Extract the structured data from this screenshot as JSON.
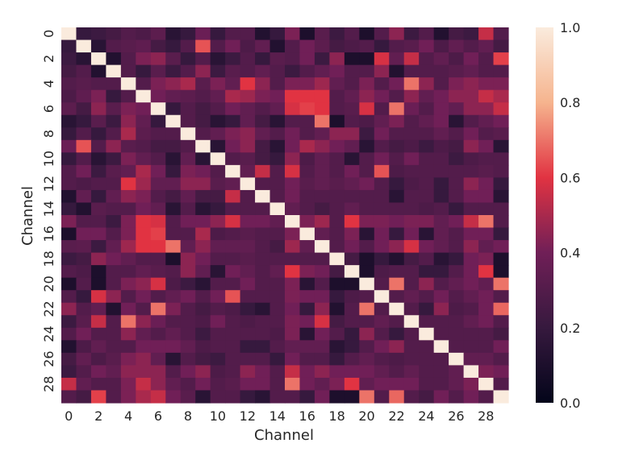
{
  "chart_data": {
    "type": "heatmap",
    "xlabel": "Channel",
    "ylabel": "Channel",
    "size": 30,
    "x_tick_labels": [
      "0",
      "2",
      "4",
      "6",
      "8",
      "10",
      "12",
      "14",
      "16",
      "18",
      "20",
      "22",
      "24",
      "26",
      "28"
    ],
    "y_tick_labels": [
      "0",
      "2",
      "4",
      "6",
      "8",
      "10",
      "12",
      "14",
      "16",
      "18",
      "20",
      "22",
      "24",
      "26",
      "28"
    ],
    "colorbar": {
      "min": 0.0,
      "max": 1.0,
      "tick_labels": [
        "0.0",
        "0.2",
        "0.4",
        "0.6",
        "0.8",
        "1.0"
      ],
      "colormap": "rocket"
    },
    "values": [
      [
        1.0,
        0.2,
        0.22,
        0.25,
        0.3,
        0.28,
        0.33,
        0.15,
        0.2,
        0.38,
        0.2,
        0.3,
        0.3,
        0.12,
        0.2,
        0.42,
        0.1,
        0.32,
        0.22,
        0.3,
        0.1,
        0.3,
        0.45,
        0.22,
        0.3,
        0.12,
        0.25,
        0.22,
        0.55,
        0.3
      ],
      [
        0.2,
        1.0,
        0.15,
        0.3,
        0.32,
        0.34,
        0.25,
        0.2,
        0.3,
        0.65,
        0.3,
        0.4,
        0.28,
        0.35,
        0.12,
        0.3,
        0.4,
        0.33,
        0.25,
        0.28,
        0.3,
        0.2,
        0.3,
        0.32,
        0.4,
        0.28,
        0.35,
        0.3,
        0.35,
        0.25
      ],
      [
        0.22,
        0.15,
        1.0,
        0.12,
        0.3,
        0.42,
        0.45,
        0.32,
        0.2,
        0.3,
        0.15,
        0.22,
        0.3,
        0.2,
        0.32,
        0.3,
        0.4,
        0.22,
        0.45,
        0.1,
        0.1,
        0.58,
        0.35,
        0.55,
        0.3,
        0.35,
        0.28,
        0.4,
        0.3,
        0.62
      ],
      [
        0.25,
        0.3,
        0.12,
        1.0,
        0.3,
        0.2,
        0.32,
        0.22,
        0.3,
        0.45,
        0.22,
        0.32,
        0.3,
        0.35,
        0.3,
        0.22,
        0.3,
        0.35,
        0.4,
        0.3,
        0.3,
        0.45,
        0.12,
        0.3,
        0.3,
        0.3,
        0.32,
        0.35,
        0.3,
        0.3
      ],
      [
        0.3,
        0.32,
        0.3,
        0.3,
        1.0,
        0.3,
        0.42,
        0.45,
        0.5,
        0.32,
        0.42,
        0.35,
        0.6,
        0.45,
        0.3,
        0.42,
        0.42,
        0.48,
        0.35,
        0.3,
        0.42,
        0.3,
        0.4,
        0.7,
        0.45,
        0.3,
        0.42,
        0.45,
        0.42,
        0.42
      ],
      [
        0.28,
        0.34,
        0.42,
        0.2,
        0.3,
        1.0,
        0.4,
        0.35,
        0.33,
        0.3,
        0.35,
        0.5,
        0.48,
        0.42,
        0.4,
        0.6,
        0.6,
        0.6,
        0.3,
        0.35,
        0.45,
        0.4,
        0.3,
        0.45,
        0.35,
        0.4,
        0.45,
        0.45,
        0.55,
        0.5
      ],
      [
        0.33,
        0.25,
        0.45,
        0.32,
        0.42,
        0.4,
        1.0,
        0.2,
        0.3,
        0.25,
        0.3,
        0.4,
        0.35,
        0.3,
        0.35,
        0.58,
        0.62,
        0.6,
        0.3,
        0.32,
        0.58,
        0.3,
        0.7,
        0.38,
        0.3,
        0.4,
        0.35,
        0.45,
        0.45,
        0.55
      ],
      [
        0.15,
        0.2,
        0.32,
        0.22,
        0.45,
        0.35,
        0.2,
        1.0,
        0.3,
        0.25,
        0.15,
        0.2,
        0.35,
        0.25,
        0.15,
        0.3,
        0.3,
        0.7,
        0.1,
        0.3,
        0.28,
        0.35,
        0.42,
        0.3,
        0.35,
        0.4,
        0.15,
        0.3,
        0.35,
        0.4
      ],
      [
        0.2,
        0.3,
        0.2,
        0.3,
        0.5,
        0.33,
        0.3,
        0.3,
        1.0,
        0.3,
        0.35,
        0.42,
        0.45,
        0.35,
        0.3,
        0.4,
        0.3,
        0.35,
        0.45,
        0.45,
        0.22,
        0.4,
        0.3,
        0.3,
        0.3,
        0.35,
        0.3,
        0.4,
        0.3,
        0.32
      ],
      [
        0.38,
        0.65,
        0.3,
        0.45,
        0.32,
        0.3,
        0.25,
        0.25,
        0.3,
        1.0,
        0.15,
        0.4,
        0.45,
        0.25,
        0.15,
        0.4,
        0.5,
        0.45,
        0.4,
        0.35,
        0.15,
        0.3,
        0.25,
        0.28,
        0.22,
        0.28,
        0.25,
        0.45,
        0.4,
        0.15
      ],
      [
        0.2,
        0.3,
        0.15,
        0.22,
        0.42,
        0.35,
        0.3,
        0.15,
        0.35,
        0.15,
        1.0,
        0.3,
        0.32,
        0.25,
        0.2,
        0.45,
        0.28,
        0.35,
        0.3,
        0.15,
        0.3,
        0.4,
        0.3,
        0.4,
        0.3,
        0.3,
        0.22,
        0.28,
        0.3,
        0.3
      ],
      [
        0.3,
        0.4,
        0.22,
        0.32,
        0.35,
        0.5,
        0.4,
        0.2,
        0.42,
        0.4,
        0.3,
        1.0,
        0.35,
        0.55,
        0.3,
        0.58,
        0.3,
        0.35,
        0.3,
        0.4,
        0.3,
        0.65,
        0.28,
        0.3,
        0.3,
        0.3,
        0.3,
        0.3,
        0.32,
        0.3
      ],
      [
        0.3,
        0.28,
        0.3,
        0.3,
        0.6,
        0.48,
        0.35,
        0.35,
        0.45,
        0.45,
        0.32,
        0.35,
        1.0,
        0.3,
        0.3,
        0.4,
        0.32,
        0.35,
        0.32,
        0.35,
        0.4,
        0.3,
        0.2,
        0.28,
        0.3,
        0.2,
        0.3,
        0.45,
        0.4,
        0.2
      ],
      [
        0.12,
        0.35,
        0.2,
        0.35,
        0.45,
        0.42,
        0.3,
        0.25,
        0.35,
        0.25,
        0.25,
        0.55,
        0.3,
        1.0,
        0.3,
        0.4,
        0.3,
        0.3,
        0.3,
        0.3,
        0.3,
        0.3,
        0.15,
        0.3,
        0.3,
        0.2,
        0.3,
        0.4,
        0.4,
        0.15
      ],
      [
        0.2,
        0.12,
        0.32,
        0.3,
        0.3,
        0.4,
        0.35,
        0.15,
        0.3,
        0.15,
        0.2,
        0.3,
        0.3,
        0.3,
        1.0,
        0.35,
        0.3,
        0.25,
        0.3,
        0.35,
        0.3,
        0.3,
        0.3,
        0.3,
        0.28,
        0.3,
        0.2,
        0.3,
        0.3,
        0.3
      ],
      [
        0.42,
        0.3,
        0.3,
        0.22,
        0.42,
        0.6,
        0.58,
        0.3,
        0.4,
        0.4,
        0.45,
        0.58,
        0.4,
        0.4,
        0.35,
        1.0,
        0.42,
        0.48,
        0.3,
        0.6,
        0.42,
        0.42,
        0.4,
        0.42,
        0.42,
        0.35,
        0.4,
        0.55,
        0.7,
        0.3
      ],
      [
        0.1,
        0.4,
        0.4,
        0.3,
        0.42,
        0.6,
        0.62,
        0.3,
        0.3,
        0.5,
        0.28,
        0.3,
        0.32,
        0.3,
        0.3,
        0.42,
        1.0,
        0.35,
        0.3,
        0.42,
        0.15,
        0.4,
        0.2,
        0.4,
        0.15,
        0.35,
        0.3,
        0.4,
        0.4,
        0.2
      ],
      [
        0.32,
        0.33,
        0.22,
        0.35,
        0.48,
        0.6,
        0.6,
        0.7,
        0.35,
        0.45,
        0.35,
        0.35,
        0.35,
        0.3,
        0.25,
        0.48,
        0.35,
        1.0,
        0.3,
        0.4,
        0.3,
        0.4,
        0.45,
        0.58,
        0.4,
        0.35,
        0.3,
        0.45,
        0.35,
        0.4
      ],
      [
        0.22,
        0.25,
        0.45,
        0.4,
        0.35,
        0.3,
        0.3,
        0.1,
        0.45,
        0.4,
        0.3,
        0.3,
        0.32,
        0.3,
        0.3,
        0.3,
        0.3,
        0.3,
        1.0,
        0.25,
        0.1,
        0.2,
        0.12,
        0.25,
        0.3,
        0.15,
        0.2,
        0.4,
        0.42,
        0.1
      ],
      [
        0.3,
        0.28,
        0.1,
        0.3,
        0.3,
        0.35,
        0.32,
        0.3,
        0.45,
        0.35,
        0.15,
        0.4,
        0.35,
        0.3,
        0.35,
        0.6,
        0.42,
        0.4,
        0.25,
        1.0,
        0.1,
        0.28,
        0.3,
        0.3,
        0.2,
        0.2,
        0.3,
        0.4,
        0.6,
        0.1
      ],
      [
        0.1,
        0.3,
        0.1,
        0.3,
        0.42,
        0.45,
        0.58,
        0.28,
        0.22,
        0.15,
        0.3,
        0.3,
        0.4,
        0.3,
        0.3,
        0.42,
        0.15,
        0.3,
        0.1,
        0.1,
        1.0,
        0.3,
        0.7,
        0.3,
        0.45,
        0.3,
        0.35,
        0.4,
        0.35,
        0.7
      ],
      [
        0.3,
        0.2,
        0.58,
        0.45,
        0.3,
        0.4,
        0.3,
        0.35,
        0.4,
        0.3,
        0.4,
        0.65,
        0.3,
        0.3,
        0.3,
        0.42,
        0.4,
        0.4,
        0.2,
        0.28,
        0.3,
        1.0,
        0.3,
        0.35,
        0.3,
        0.4,
        0.3,
        0.35,
        0.4,
        0.3
      ],
      [
        0.45,
        0.3,
        0.35,
        0.12,
        0.4,
        0.3,
        0.7,
        0.42,
        0.3,
        0.25,
        0.3,
        0.28,
        0.2,
        0.15,
        0.3,
        0.4,
        0.2,
        0.45,
        0.12,
        0.3,
        0.7,
        0.3,
        1.0,
        0.3,
        0.2,
        0.45,
        0.28,
        0.3,
        0.4,
        0.68
      ],
      [
        0.22,
        0.32,
        0.55,
        0.3,
        0.7,
        0.45,
        0.38,
        0.3,
        0.3,
        0.28,
        0.4,
        0.3,
        0.28,
        0.3,
        0.3,
        0.42,
        0.4,
        0.58,
        0.25,
        0.3,
        0.3,
        0.35,
        0.3,
        1.0,
        0.3,
        0.3,
        0.3,
        0.35,
        0.4,
        0.3
      ],
      [
        0.3,
        0.4,
        0.3,
        0.3,
        0.45,
        0.35,
        0.3,
        0.35,
        0.3,
        0.22,
        0.3,
        0.3,
        0.3,
        0.3,
        0.28,
        0.42,
        0.15,
        0.4,
        0.3,
        0.2,
        0.45,
        0.3,
        0.2,
        0.3,
        1.0,
        0.3,
        0.3,
        0.3,
        0.3,
        0.25
      ],
      [
        0.12,
        0.28,
        0.35,
        0.3,
        0.3,
        0.4,
        0.4,
        0.4,
        0.35,
        0.28,
        0.3,
        0.3,
        0.2,
        0.2,
        0.3,
        0.35,
        0.35,
        0.35,
        0.15,
        0.2,
        0.3,
        0.4,
        0.45,
        0.3,
        0.3,
        1.0,
        0.3,
        0.3,
        0.3,
        0.4
      ],
      [
        0.25,
        0.35,
        0.28,
        0.32,
        0.42,
        0.45,
        0.35,
        0.15,
        0.3,
        0.25,
        0.22,
        0.3,
        0.3,
        0.3,
        0.2,
        0.4,
        0.3,
        0.3,
        0.2,
        0.3,
        0.35,
        0.3,
        0.28,
        0.3,
        0.3,
        0.3,
        1.0,
        0.35,
        0.35,
        0.3
      ],
      [
        0.22,
        0.3,
        0.4,
        0.35,
        0.45,
        0.45,
        0.45,
        0.3,
        0.4,
        0.45,
        0.28,
        0.3,
        0.45,
        0.4,
        0.3,
        0.55,
        0.4,
        0.45,
        0.4,
        0.4,
        0.4,
        0.35,
        0.3,
        0.35,
        0.3,
        0.3,
        0.35,
        1.0,
        0.42,
        0.4
      ],
      [
        0.55,
        0.35,
        0.3,
        0.3,
        0.42,
        0.55,
        0.45,
        0.35,
        0.3,
        0.4,
        0.3,
        0.32,
        0.4,
        0.4,
        0.3,
        0.7,
        0.4,
        0.35,
        0.42,
        0.6,
        0.35,
        0.4,
        0.4,
        0.4,
        0.3,
        0.3,
        0.35,
        0.42,
        1.0,
        0.3
      ],
      [
        0.3,
        0.25,
        0.62,
        0.3,
        0.42,
        0.5,
        0.55,
        0.4,
        0.32,
        0.15,
        0.3,
        0.3,
        0.2,
        0.15,
        0.3,
        0.3,
        0.2,
        0.4,
        0.1,
        0.1,
        0.7,
        0.3,
        0.68,
        0.3,
        0.25,
        0.4,
        0.3,
        0.4,
        0.3,
        1.0
      ]
    ]
  }
}
